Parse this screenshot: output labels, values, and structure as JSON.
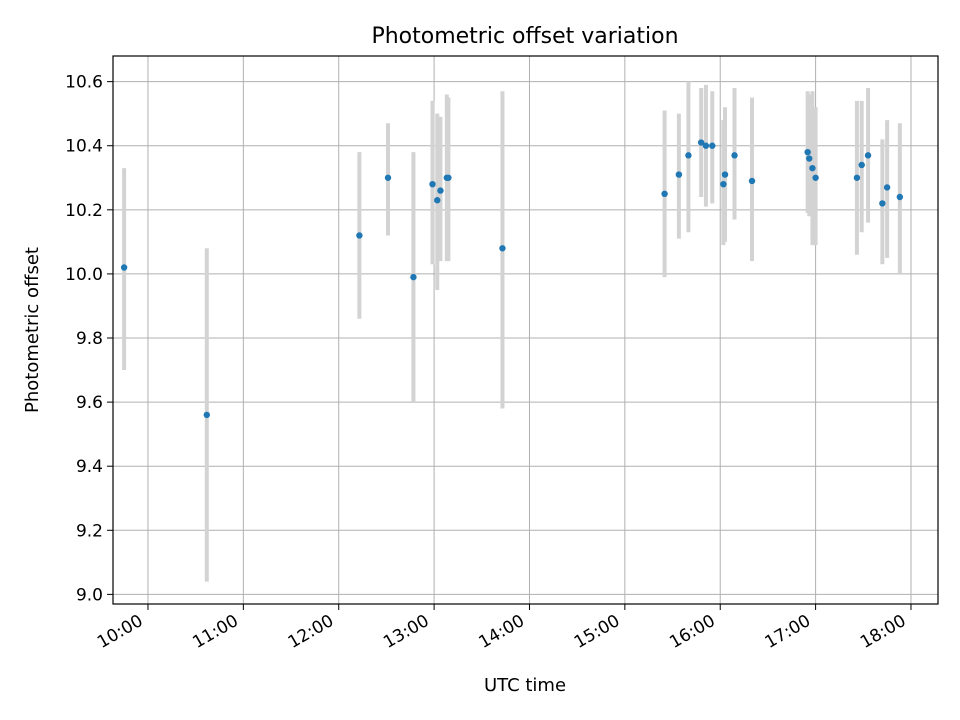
{
  "chart_data": {
    "type": "scatter",
    "title": "Photometric offset variation",
    "xlabel": "UTC time",
    "ylabel": "Photometric offset",
    "xlim": [
      "09:38",
      "18:17"
    ],
    "ylim": [
      8.97,
      10.68
    ],
    "xticks": [
      "10:00",
      "11:00",
      "12:00",
      "13:00",
      "14:00",
      "15:00",
      "16:00",
      "17:00",
      "18:00"
    ],
    "yticks": [
      "9.0",
      "9.2",
      "9.4",
      "9.6",
      "9.8",
      "10.0",
      "10.2",
      "10.4",
      "10.6"
    ],
    "grid": true,
    "marker_color": "#1f77b4",
    "errorbar_color": "#d3d3d3",
    "points": [
      {
        "x": "09:45",
        "y": 10.02,
        "ylo": 9.7,
        "yhi": 10.33
      },
      {
        "x": "10:37",
        "y": 9.56,
        "ylo": 9.04,
        "yhi": 10.08
      },
      {
        "x": "12:13",
        "y": 10.12,
        "ylo": 9.86,
        "yhi": 10.38
      },
      {
        "x": "12:31",
        "y": 10.3,
        "ylo": 10.12,
        "yhi": 10.47
      },
      {
        "x": "12:47",
        "y": 9.99,
        "ylo": 9.6,
        "yhi": 10.38
      },
      {
        "x": "12:59",
        "y": 10.28,
        "ylo": 10.03,
        "yhi": 10.54
      },
      {
        "x": "13:02",
        "y": 10.23,
        "ylo": 9.95,
        "yhi": 10.5
      },
      {
        "x": "13:04",
        "y": 10.26,
        "ylo": 10.04,
        "yhi": 10.49
      },
      {
        "x": "13:08",
        "y": 10.3,
        "ylo": 10.04,
        "yhi": 10.56
      },
      {
        "x": "13:09",
        "y": 10.3,
        "ylo": 10.04,
        "yhi": 10.55
      },
      {
        "x": "13:43",
        "y": 10.08,
        "ylo": 9.58,
        "yhi": 10.57
      },
      {
        "x": "15:25",
        "y": 10.25,
        "ylo": 9.99,
        "yhi": 10.51
      },
      {
        "x": "15:34",
        "y": 10.31,
        "ylo": 10.11,
        "yhi": 10.5
      },
      {
        "x": "15:40",
        "y": 10.37,
        "ylo": 10.13,
        "yhi": 10.6
      },
      {
        "x": "15:48",
        "y": 10.41,
        "ylo": 10.24,
        "yhi": 10.58
      },
      {
        "x": "15:51",
        "y": 10.4,
        "ylo": 10.21,
        "yhi": 10.59
      },
      {
        "x": "15:55",
        "y": 10.4,
        "ylo": 10.22,
        "yhi": 10.57
      },
      {
        "x": "16:02",
        "y": 10.28,
        "ylo": 10.09,
        "yhi": 10.48
      },
      {
        "x": "16:03",
        "y": 10.31,
        "ylo": 10.1,
        "yhi": 10.52
      },
      {
        "x": "16:09",
        "y": 10.37,
        "ylo": 10.17,
        "yhi": 10.58
      },
      {
        "x": "16:20",
        "y": 10.29,
        "ylo": 10.04,
        "yhi": 10.55
      },
      {
        "x": "16:55",
        "y": 10.38,
        "ylo": 10.19,
        "yhi": 10.57
      },
      {
        "x": "16:56",
        "y": 10.36,
        "ylo": 10.18,
        "yhi": 10.56
      },
      {
        "x": "16:58",
        "y": 10.33,
        "ylo": 10.09,
        "yhi": 10.57
      },
      {
        "x": "17:00",
        "y": 10.3,
        "ylo": 10.09,
        "yhi": 10.52
      },
      {
        "x": "17:26",
        "y": 10.3,
        "ylo": 10.06,
        "yhi": 10.54
      },
      {
        "x": "17:29",
        "y": 10.34,
        "ylo": 10.13,
        "yhi": 10.54
      },
      {
        "x": "17:33",
        "y": 10.37,
        "ylo": 10.16,
        "yhi": 10.58
      },
      {
        "x": "17:42",
        "y": 10.22,
        "ylo": 10.03,
        "yhi": 10.42
      },
      {
        "x": "17:45",
        "y": 10.27,
        "ylo": 10.05,
        "yhi": 10.48
      },
      {
        "x": "17:53",
        "y": 10.24,
        "ylo": 10.0,
        "yhi": 10.47
      }
    ]
  }
}
